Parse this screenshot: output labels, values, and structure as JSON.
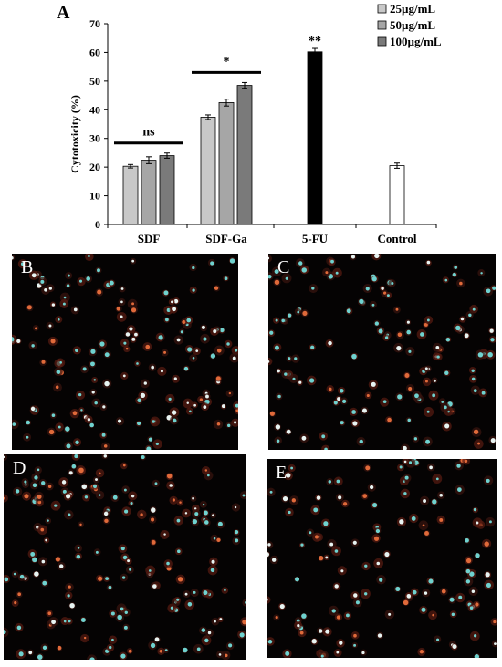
{
  "panel_labels": {
    "a": "A",
    "b": "B",
    "c": "C",
    "d": "D",
    "e": "E"
  },
  "chart_data": {
    "type": "bar",
    "title": "",
    "xlabel": "",
    "ylabel": "Cytotoxicity (%)",
    "ylim": [
      0,
      70
    ],
    "yticks": [
      0,
      10,
      20,
      30,
      40,
      50,
      60,
      70
    ],
    "categories": [
      "SDF",
      "SDF-Ga",
      "5-FU",
      "Control"
    ],
    "legend_position": "top-right",
    "legend": [
      {
        "label": "25µg/mL",
        "color": "#c8c8c8"
      },
      {
        "label": "50µg/mL",
        "color": "#a6a6a6"
      },
      {
        "label": "100µg/mL",
        "color": "#7a7a7a"
      }
    ],
    "bars": [
      {
        "category": "SDF",
        "dose": "25µg/mL",
        "value": 20.3,
        "error": 0.6,
        "color": "#c8c8c8"
      },
      {
        "category": "SDF",
        "dose": "50µg/mL",
        "value": 22.4,
        "error": 1.2,
        "color": "#a6a6a6"
      },
      {
        "category": "SDF",
        "dose": "100µg/mL",
        "value": 24.0,
        "error": 0.9,
        "color": "#7a7a7a"
      },
      {
        "category": "SDF-Ga",
        "dose": "25µg/mL",
        "value": 37.4,
        "error": 0.8,
        "color": "#c8c8c8"
      },
      {
        "category": "SDF-Ga",
        "dose": "50µg/mL",
        "value": 42.5,
        "error": 1.2,
        "color": "#a6a6a6"
      },
      {
        "category": "SDF-Ga",
        "dose": "100µg/mL",
        "value": 48.5,
        "error": 1.0,
        "color": "#7a7a7a"
      },
      {
        "category": "5-FU",
        "value": 60.2,
        "error": 1.2,
        "color": "#000000"
      },
      {
        "category": "Control",
        "value": 20.5,
        "error": 0.9,
        "color": "#ffffff"
      }
    ],
    "annotations": [
      {
        "text": "ns",
        "category": "SDF"
      },
      {
        "text": "*",
        "category": "SDF-Ga"
      },
      {
        "text": "**",
        "category": "5-FU"
      }
    ]
  }
}
